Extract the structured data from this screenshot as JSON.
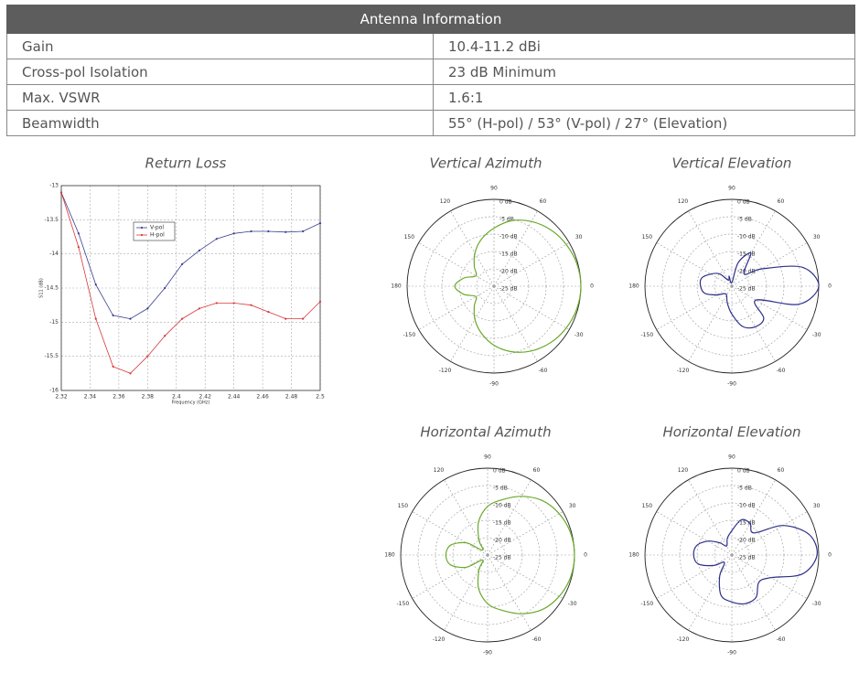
{
  "table": {
    "title": "Antenna Information",
    "rows": [
      [
        "Gain",
        "10.4-11.2 dBi"
      ],
      [
        "Cross-pol Isolation",
        "23 dB Minimum"
      ],
      [
        "Max. VSWR",
        "1.6:1"
      ],
      [
        "Beamwidth",
        "55° (H-pol) / 53° (V-pol) / 27° (Elevation)"
      ]
    ]
  },
  "chart_data": [
    {
      "type": "line",
      "title": "Return Loss",
      "x_label": "Frequency (GHz)",
      "y_label": "S11 (dB)",
      "x": [
        2.32,
        2.332,
        2.344,
        2.356,
        2.368,
        2.38,
        2.392,
        2.404,
        2.416,
        2.428,
        2.44,
        2.452,
        2.464,
        2.476,
        2.488,
        2.5
      ],
      "xlim": [
        2.32,
        2.5
      ],
      "xticks": [
        2.32,
        2.34,
        2.36,
        2.38,
        2.4,
        2.42,
        2.44,
        2.46,
        2.48,
        2.5
      ],
      "ylim": [
        -16,
        -13
      ],
      "yticks": [
        -13,
        -13.5,
        -14,
        -14.5,
        -15,
        -15.5,
        -16
      ],
      "grid": true,
      "series": [
        {
          "name": "V-pol",
          "color": "#3a3f8f",
          "values": [
            -13.1,
            -13.7,
            -14.45,
            -14.9,
            -14.95,
            -14.8,
            -14.5,
            -14.15,
            -13.95,
            -13.78,
            -13.7,
            -13.67,
            -13.67,
            -13.68,
            -13.67,
            -13.55
          ]
        },
        {
          "name": "H-pol",
          "color": "#d8383a",
          "values": [
            -13.1,
            -13.9,
            -14.95,
            -15.65,
            -15.75,
            -15.5,
            -15.2,
            -14.95,
            -14.8,
            -14.72,
            -14.72,
            -14.75,
            -14.85,
            -14.95,
            -14.95,
            -14.7
          ]
        }
      ]
    },
    {
      "type": "polar",
      "title": "Vertical Azimuth",
      "theta": [
        0,
        15,
        30,
        45,
        60,
        75,
        90,
        105,
        120,
        135,
        150,
        165,
        180,
        -165,
        -150,
        -135,
        -120,
        -105,
        -90,
        -75,
        -60,
        -45,
        -30,
        -15
      ],
      "rlim": [
        -25,
        0
      ],
      "rticks": [
        {
          "value": 0,
          "label": "0 dB"
        },
        {
          "value": -5,
          "label": "-5 dB"
        },
        {
          "value": -10,
          "label": "-10 dB"
        },
        {
          "value": -15,
          "label": "-15 dB"
        },
        {
          "value": -20,
          "label": "-20 dB"
        },
        {
          "value": -25,
          "label": "-25 dB"
        }
      ],
      "thetaticks": [
        0,
        30,
        60,
        90,
        120,
        150,
        180,
        -150,
        -120,
        -90,
        -60,
        -30
      ],
      "series": [
        {
          "color": "#6aaa2a",
          "values": [
            0,
            -0.3,
            -1,
            -2,
            -3.5,
            -5.5,
            -8.3,
            -11,
            -14,
            -17,
            -19,
            -16,
            -13.7,
            -16,
            -19,
            -17,
            -14,
            -11,
            -8,
            -5.5,
            -3.5,
            -2,
            -1,
            -0.3
          ]
        }
      ]
    },
    {
      "type": "polar",
      "title": "Vertical Elevation",
      "theta": [
        0,
        15,
        30,
        45,
        60,
        75,
        90,
        105,
        120,
        135,
        150,
        165,
        180,
        -165,
        -150,
        -135,
        -120,
        -105,
        -90,
        -75,
        -60,
        -45,
        -30,
        -15
      ],
      "rlim": [
        -25,
        0
      ],
      "rticks": [
        {
          "value": 0,
          "label": "0 dB"
        },
        {
          "value": -5,
          "label": "-5 dB"
        },
        {
          "value": -10,
          "label": "-10 dB"
        },
        {
          "value": -15,
          "label": "-15 dB"
        },
        {
          "value": -20,
          "label": "-20 dB"
        },
        {
          "value": -25,
          "label": "-25 dB"
        }
      ],
      "thetaticks": [
        0,
        30,
        60,
        90,
        120,
        150,
        180,
        -150,
        -120,
        -90,
        -60,
        -30
      ],
      "series": [
        {
          "color": "#2c2f8a",
          "values": [
            0,
            -4,
            -15,
            -20,
            -14,
            -18,
            -24,
            -22,
            -23,
            -20,
            -18,
            -16,
            -16,
            -17,
            -20,
            -22,
            -22,
            -20,
            -17,
            -13,
            -11.5,
            -12,
            -17,
            -5
          ]
        }
      ]
    },
    {
      "type": "polar",
      "title": "Horizontal Azimuth",
      "theta": [
        0,
        15,
        30,
        45,
        60,
        75,
        90,
        105,
        120,
        135,
        150,
        165,
        180,
        -165,
        -150,
        -135,
        -120,
        -105,
        -90,
        -75,
        -60,
        -45,
        -30,
        -15
      ],
      "rlim": [
        -25,
        0
      ],
      "rticks": [
        {
          "value": 0,
          "label": "0 dB"
        },
        {
          "value": -5,
          "label": "-5 dB"
        },
        {
          "value": -10,
          "label": "-10 dB"
        },
        {
          "value": -15,
          "label": "-15 dB"
        },
        {
          "value": -20,
          "label": "-20 dB"
        },
        {
          "value": -25,
          "label": "-25 dB"
        }
      ],
      "thetaticks": [
        0,
        30,
        60,
        90,
        120,
        150,
        180,
        -150,
        -120,
        -90,
        -60,
        -30
      ],
      "series": [
        {
          "color": "#6aaa2a",
          "values": [
            0,
            -0.3,
            -1.2,
            -2.8,
            -5.5,
            -8.5,
            -11,
            -15,
            -20,
            -23,
            -18,
            -14,
            -13,
            -14,
            -18,
            -23,
            -20,
            -15,
            -11,
            -8.5,
            -5.5,
            -2.8,
            -1.2,
            -0.3
          ]
        }
      ]
    },
    {
      "type": "polar",
      "title": "Horizontal Elevation",
      "theta": [
        0,
        15,
        30,
        45,
        60,
        75,
        90,
        105,
        120,
        135,
        150,
        165,
        180,
        -165,
        -150,
        -135,
        -120,
        -105,
        -90,
        -75,
        -60,
        -45,
        -30,
        -15
      ],
      "rlim": [
        -25,
        0
      ],
      "rticks": [
        {
          "value": 0,
          "label": "0 dB"
        },
        {
          "value": -5,
          "label": "-5 dB"
        },
        {
          "value": -10,
          "label": "-10 dB"
        },
        {
          "value": -15,
          "label": "-15 dB"
        },
        {
          "value": -20,
          "label": "-20 dB"
        },
        {
          "value": -25,
          "label": "-25 dB"
        }
      ],
      "thetaticks": [
        0,
        30,
        60,
        90,
        120,
        150,
        180,
        -150,
        -120,
        -90,
        -60,
        -30
      ],
      "series": [
        {
          "color": "#2c2f8a",
          "values": [
            -0.5,
            -2,
            -8,
            -16,
            -14.5,
            -14.5,
            -18,
            -20,
            -22,
            -20,
            -17,
            -14.5,
            -14,
            -15,
            -19,
            -22,
            -18,
            -13,
            -11.5,
            -10.5,
            -11,
            -14,
            -12,
            -4
          ]
        }
      ]
    }
  ]
}
